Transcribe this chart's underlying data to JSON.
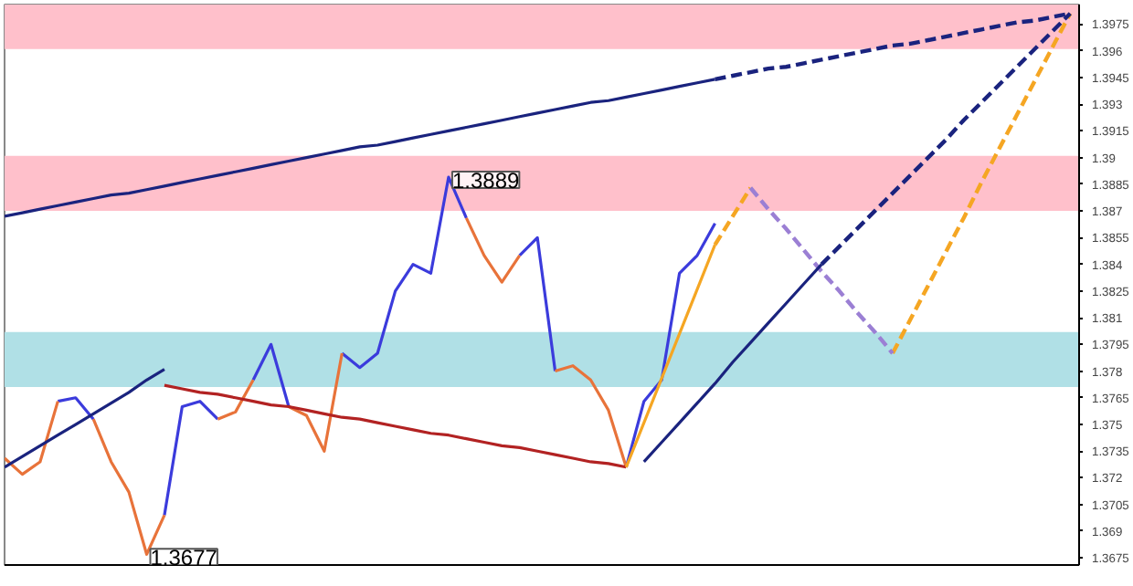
{
  "chart_data": {
    "type": "line",
    "categories": [
      null,
      null,
      null,
      null,
      null,
      null,
      null,
      null,
      null,
      null,
      null,
      null,
      null,
      null,
      null,
      null,
      null,
      null,
      null,
      null,
      null,
      null,
      null,
      null,
      null,
      null,
      null,
      null,
      null,
      null,
      null,
      null,
      null,
      null,
      null,
      null,
      null,
      null,
      null,
      null,
      null,
      null,
      null,
      null,
      null,
      null,
      null,
      null,
      null,
      null,
      null,
      null,
      null,
      null,
      null,
      null,
      null,
      null,
      null,
      null,
      null
    ],
    "tick_labels": "y",
    "ylim": [
      1.3671,
      1.3986
    ],
    "yticks": [
      1.3675,
      1.369,
      1.3705,
      1.372,
      1.3735,
      1.375,
      1.3765,
      1.378,
      1.3795,
      1.381,
      1.3825,
      1.384,
      1.3855,
      1.387,
      1.3885,
      1.39,
      1.3915,
      1.393,
      1.3945,
      1.396,
      1.3975
    ],
    "grid": false,
    "bands": [
      {
        "axis": "y",
        "from": 1.3961,
        "to": 1.3986,
        "label": null,
        "color": "#ffc0cb"
      },
      {
        "axis": "y",
        "from": 1.387,
        "to": 1.3901,
        "label": null,
        "color": "#ffc0cb"
      },
      {
        "axis": "y",
        "from": 1.3771,
        "to": 1.3802,
        "label": null,
        "color": "#b0e0e6"
      }
    ],
    "annotations": [
      "1.3889",
      "1.3677"
    ],
    "series": [
      {
        "color": "#3b3bdc",
        "line_style": "solid",
        "values": [
          null,
          null,
          null,
          1.3763,
          1.3765,
          1.3753,
          null,
          null,
          null,
          1.3699,
          1.376,
          1.3763,
          1.3753,
          null,
          1.3775,
          1.3795,
          1.376,
          null,
          null,
          1.379,
          1.3782,
          1.379,
          1.3825,
          1.384,
          1.3835,
          1.3889,
          1.3866,
          null,
          null,
          1.3845,
          1.3855,
          1.378,
          null,
          null,
          null,
          1.3726,
          1.3763,
          1.3775,
          1.3835,
          1.3845,
          1.3863,
          null,
          null,
          null,
          null,
          null,
          null,
          null,
          null,
          null,
          null,
          null,
          null,
          null,
          null,
          null,
          null,
          null,
          null,
          null,
          null
        ]
      },
      {
        "color": "#e8733a",
        "line_style": "solid",
        "values": [
          1.3731,
          1.3722,
          1.3729,
          1.3763,
          null,
          1.3753,
          1.3729,
          1.3712,
          1.3677,
          1.3699,
          null,
          null,
          1.3753,
          1.3757,
          1.3775,
          null,
          1.376,
          1.3755,
          1.3735,
          1.379,
          null,
          null,
          null,
          null,
          null,
          null,
          1.3866,
          1.3845,
          1.383,
          1.3845,
          null,
          1.378,
          1.3783,
          1.3775,
          1.3758,
          1.3726,
          null,
          null,
          null,
          null,
          null,
          null,
          null,
          null,
          null,
          null,
          null,
          null,
          null,
          null,
          null,
          null,
          null,
          null,
          null,
          null,
          null,
          null,
          null,
          null,
          null
        ]
      },
      {
        "color": "#1a237e",
        "line_style": "solid",
        "values": [
          1.3867,
          1.3869,
          1.3871,
          1.3873,
          1.3875,
          1.3877,
          1.3879,
          1.388,
          1.3882,
          1.3884,
          1.3886,
          1.3888,
          1.389,
          1.3892,
          1.3894,
          1.3896,
          1.3898,
          1.39,
          1.3902,
          1.3904,
          1.3906,
          1.3907,
          1.3909,
          1.3911,
          1.3913,
          1.3915,
          1.3917,
          1.3919,
          1.3921,
          1.3923,
          1.3925,
          1.3927,
          1.3929,
          1.3931,
          1.3932,
          1.3934,
          1.3936,
          1.3938,
          1.394,
          1.3942,
          1.3944,
          null,
          null,
          null,
          null,
          null,
          null,
          null,
          null,
          null,
          null,
          null,
          null,
          null,
          null,
          null,
          null,
          null,
          null,
          null,
          null
        ]
      },
      {
        "color": "#1a237e",
        "line_style": "dashed",
        "values": [
          null,
          null,
          null,
          null,
          null,
          null,
          null,
          null,
          null,
          null,
          null,
          null,
          null,
          null,
          null,
          null,
          null,
          null,
          null,
          null,
          null,
          null,
          null,
          null,
          null,
          null,
          null,
          null,
          null,
          null,
          null,
          null,
          null,
          null,
          null,
          null,
          null,
          null,
          null,
          null,
          1.3944,
          1.3946,
          1.3948,
          1.395,
          1.3951,
          1.3953,
          1.3955,
          1.3957,
          1.3959,
          1.3961,
          1.3963,
          1.3964,
          1.3966,
          1.3968,
          1.397,
          1.3972,
          1.3974,
          1.3976,
          1.3977,
          1.3979,
          1.3981
        ]
      },
      {
        "color": "#1a237e",
        "line_style": "solid",
        "values": [
          1.3726,
          1.3732,
          1.3738,
          1.3744,
          1.375,
          1.3756,
          1.3762,
          1.3768,
          1.3775,
          1.3781,
          null,
          null,
          null,
          null,
          null,
          null,
          null,
          null,
          null,
          null,
          null,
          null,
          null,
          null,
          null,
          null,
          null,
          null,
          null,
          null,
          null,
          null,
          null,
          null,
          null,
          null,
          null,
          null,
          null,
          null,
          null,
          null,
          null,
          null,
          null,
          null,
          null,
          null,
          null,
          null,
          null,
          null,
          null,
          null,
          null,
          null,
          null,
          null,
          null,
          null,
          null
        ]
      },
      {
        "color": "#b22222",
        "line_style": "solid",
        "values": [
          null,
          null,
          null,
          null,
          null,
          null,
          null,
          null,
          null,
          1.3772,
          1.377,
          1.3768,
          1.3767,
          1.3765,
          1.3763,
          1.3761,
          1.376,
          1.3758,
          1.3756,
          1.3754,
          1.3753,
          1.3751,
          1.3749,
          1.3747,
          1.3745,
          1.3744,
          1.3742,
          1.374,
          1.3738,
          1.3737,
          1.3735,
          1.3733,
          1.3731,
          1.3729,
          1.3728,
          1.3726,
          null,
          null,
          null,
          null,
          null,
          null,
          null,
          null,
          null,
          null,
          null,
          null,
          null,
          null,
          null,
          null,
          null,
          null,
          null,
          null,
          null,
          null,
          null,
          null,
          null
        ]
      },
      {
        "color": "#f5a623",
        "line_style": "solid",
        "values": [
          null,
          null,
          null,
          null,
          null,
          null,
          null,
          null,
          null,
          null,
          null,
          null,
          null,
          null,
          null,
          null,
          null,
          null,
          null,
          null,
          null,
          null,
          null,
          null,
          null,
          null,
          null,
          null,
          null,
          null,
          null,
          null,
          null,
          null,
          null,
          1.3726,
          1.3751,
          1.3776,
          1.3801,
          1.3826,
          1.3851,
          null,
          null,
          null,
          null,
          null,
          null,
          null,
          null,
          null,
          null,
          null,
          null,
          null,
          null,
          null,
          null,
          null,
          null,
          null,
          null
        ]
      },
      {
        "color": "#f5a623",
        "line_style": "dashed",
        "values": [
          null,
          null,
          null,
          null,
          null,
          null,
          null,
          null,
          null,
          null,
          null,
          null,
          null,
          null,
          null,
          null,
          null,
          null,
          null,
          null,
          null,
          null,
          null,
          null,
          null,
          null,
          null,
          null,
          null,
          null,
          null,
          null,
          null,
          null,
          null,
          null,
          null,
          null,
          null,
          null,
          1.3851,
          1.3867,
          1.3883,
          null,
          null,
          null,
          null,
          null,
          null,
          null,
          1.379,
          1.3809,
          1.3828,
          1.3847,
          1.3866,
          1.3886,
          1.3905,
          1.3924,
          1.3943,
          1.3962,
          1.3981
        ]
      },
      {
        "color": "#9b7fd4",
        "line_style": "dashed",
        "values": [
          null,
          null,
          null,
          null,
          null,
          null,
          null,
          null,
          null,
          null,
          null,
          null,
          null,
          null,
          null,
          null,
          null,
          null,
          null,
          null,
          null,
          null,
          null,
          null,
          null,
          null,
          null,
          null,
          null,
          null,
          null,
          null,
          null,
          null,
          null,
          null,
          null,
          null,
          null,
          null,
          null,
          null,
          1.3883,
          1.3871,
          1.386,
          1.3848,
          1.3836,
          1.3825,
          1.3813,
          1.3802,
          1.379,
          null,
          null,
          null,
          null,
          null,
          null,
          null,
          null,
          null,
          null
        ]
      },
      {
        "color": "#1a237e",
        "line_style": "solid",
        "values": [
          null,
          null,
          null,
          null,
          null,
          null,
          null,
          null,
          null,
          null,
          null,
          null,
          null,
          null,
          null,
          null,
          null,
          null,
          null,
          null,
          null,
          null,
          null,
          null,
          null,
          null,
          null,
          null,
          null,
          null,
          null,
          null,
          null,
          null,
          null,
          null,
          1.3729,
          1.374,
          1.3751,
          1.3762,
          1.3773,
          1.3785,
          1.3796,
          1.3807,
          1.3818,
          1.3829,
          1.384,
          null,
          null,
          null,
          null,
          null,
          null,
          null,
          null,
          null,
          null,
          null,
          null,
          null,
          null
        ]
      },
      {
        "color": "#1a237e",
        "line_style": "dashed",
        "values": [
          null,
          null,
          null,
          null,
          null,
          null,
          null,
          null,
          null,
          null,
          null,
          null,
          null,
          null,
          null,
          null,
          null,
          null,
          null,
          null,
          null,
          null,
          null,
          null,
          null,
          null,
          null,
          null,
          null,
          null,
          null,
          null,
          null,
          null,
          null,
          null,
          null,
          null,
          null,
          null,
          null,
          null,
          null,
          null,
          null,
          null,
          1.384,
          1.385,
          1.386,
          1.387,
          1.388,
          1.389,
          1.39,
          1.391,
          1.3921,
          1.3931,
          1.3941,
          1.3951,
          1.3961,
          1.3971,
          1.3981
        ]
      }
    ]
  }
}
